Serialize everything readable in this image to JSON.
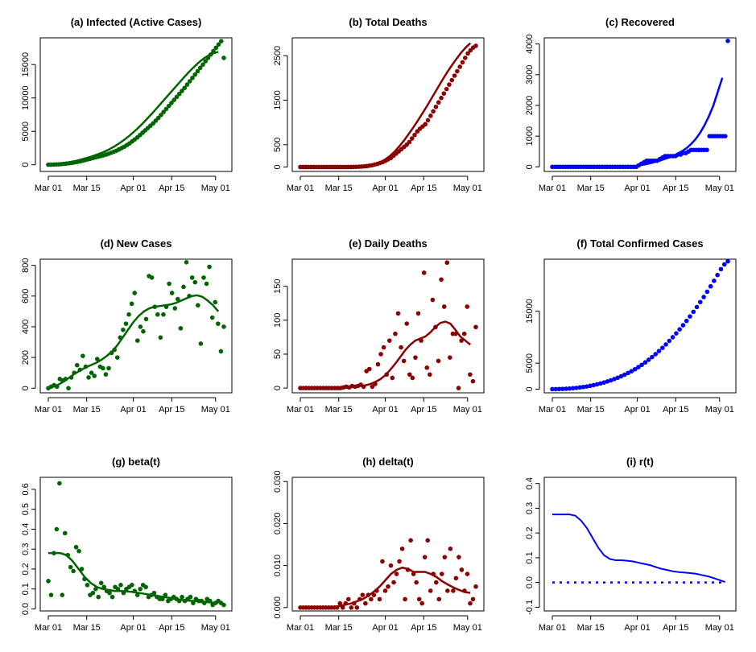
{
  "figure": {
    "date_ticks": [
      "Mar 01",
      "Mar 15",
      "Apr 01",
      "Apr 15",
      "May 01"
    ]
  },
  "colors": {
    "green": "#006400",
    "red": "#8b0000",
    "blue": "#0000ff"
  },
  "chart_data": [
    {
      "id": "a",
      "type": "scatter",
      "title": "(a) Infected (Active Cases)",
      "color": "#006400",
      "xlabel": "",
      "ylabel": "",
      "grid": false,
      "x_type": "date",
      "ylim": [
        -1000,
        19000
      ],
      "yticks": [
        0,
        5000,
        10000,
        15000
      ],
      "x_start": "Mar 01",
      "x_end": "May 04",
      "points_note": "daily observations Mar 01 - May 04",
      "values": [
        10,
        20,
        30,
        50,
        70,
        100,
        140,
        180,
        230,
        290,
        360,
        430,
        510,
        600,
        700,
        800,
        900,
        1000,
        1100,
        1200,
        1300,
        1400,
        1520,
        1650,
        1800,
        1950,
        2100,
        2300,
        2500,
        2700,
        2950,
        3200,
        3500,
        3800,
        4100,
        4450,
        4800,
        5150,
        5500,
        5850,
        6200,
        6600,
        7000,
        7450,
        7900,
        8350,
        8800,
        9250,
        9700,
        10150,
        10600,
        11050,
        11500,
        12000,
        12500,
        13000,
        13500,
        14000,
        14500,
        15000,
        15500,
        16000,
        16500,
        17000,
        17500,
        18000,
        18500,
        16000
      ],
      "fit": [
        0,
        50,
        100,
        200,
        300,
        450,
        600,
        800,
        1000,
        1200,
        1450,
        1700,
        2000,
        2350,
        2750,
        3200,
        3700,
        4250,
        4850,
        5500,
        6200,
        6950,
        7700,
        8500,
        9300,
        10100,
        10900,
        11700,
        12500,
        13300,
        14050,
        14750,
        15400,
        15950,
        16400,
        16700,
        16900
      ]
    },
    {
      "id": "b",
      "type": "scatter",
      "title": "(b) Total Deaths",
      "color": "#8b0000",
      "xlabel": "",
      "ylabel": "",
      "grid": false,
      "x_type": "date",
      "ylim": [
        -100,
        2900
      ],
      "yticks": [
        0,
        500,
        1500,
        2500
      ],
      "x_start": "Mar 01",
      "x_end": "May 04",
      "values": [
        0,
        0,
        0,
        0,
        0,
        0,
        0,
        0,
        0,
        0,
        0,
        0,
        0,
        0,
        0,
        0,
        0,
        0,
        0,
        0,
        2,
        4,
        6,
        10,
        15,
        20,
        30,
        40,
        55,
        70,
        90,
        110,
        140,
        170,
        200,
        250,
        300,
        350,
        400,
        450,
        500,
        560,
        640,
        720,
        800,
        860,
        910,
        960,
        1050,
        1150,
        1250,
        1350,
        1450,
        1550,
        1650,
        1750,
        1850,
        1950,
        2050,
        2150,
        2250,
        2350,
        2450,
        2550,
        2620,
        2680,
        2720
      ],
      "fit": [
        0,
        0,
        0,
        0,
        0,
        0,
        0,
        0,
        0,
        0,
        0,
        2,
        5,
        10,
        20,
        40,
        70,
        110,
        170,
        250,
        350,
        470,
        600,
        750,
        900,
        1060,
        1230,
        1400,
        1580,
        1760,
        1940,
        2110,
        2270,
        2420,
        2560,
        2680,
        2780
      ]
    },
    {
      "id": "c",
      "type": "scatter",
      "title": "(c) Recovered",
      "color": "#0000ff",
      "xlabel": "",
      "ylabel": "",
      "grid": false,
      "x_type": "date",
      "ylim": [
        -150,
        4200
      ],
      "yticks": [
        0,
        1000,
        2000,
        3000,
        4000
      ],
      "x_start": "Mar 01",
      "x_end": "May 04",
      "values": [
        0,
        0,
        0,
        0,
        0,
        0,
        0,
        0,
        0,
        0,
        0,
        0,
        0,
        0,
        0,
        0,
        0,
        0,
        0,
        0,
        0,
        0,
        0,
        0,
        0,
        0,
        0,
        0,
        0,
        0,
        0,
        0,
        0,
        50,
        100,
        150,
        200,
        200,
        200,
        200,
        200,
        250,
        300,
        350,
        350,
        350,
        350,
        350,
        400,
        400,
        450,
        450,
        500,
        550,
        550,
        550,
        550,
        550,
        550,
        550,
        1000,
        1000,
        1000,
        1000,
        1000,
        1000,
        1000,
        4100
      ],
      "fit": [
        0,
        0,
        0,
        0,
        0,
        0,
        0,
        0,
        0,
        0,
        0,
        0,
        0,
        0,
        0,
        0,
        0,
        10,
        20,
        40,
        60,
        90,
        120,
        160,
        200,
        250,
        300,
        360,
        430,
        510,
        610,
        740,
        900,
        1100,
        1350,
        1650,
        2000,
        2450,
        2900
      ]
    },
    {
      "id": "d",
      "type": "scatter",
      "title": "(d) New Cases",
      "color": "#006400",
      "xlabel": "",
      "ylabel": "",
      "grid": false,
      "x_type": "date",
      "ylim": [
        -30,
        840
      ],
      "yticks": [
        0,
        200,
        400,
        600,
        800
      ],
      "x_start": "Mar 01",
      "x_end": "May 04",
      "values": [
        0,
        10,
        20,
        10,
        60,
        50,
        60,
        0,
        70,
        100,
        150,
        120,
        210,
        140,
        70,
        100,
        80,
        190,
        140,
        130,
        90,
        130,
        230,
        250,
        200,
        330,
        380,
        420,
        480,
        550,
        620,
        310,
        400,
        370,
        450,
        730,
        720,
        530,
        480,
        330,
        480,
        530,
        680,
        620,
        520,
        580,
        390,
        660,
        820,
        600,
        720,
        690,
        540,
        290,
        720,
        680,
        790,
        460,
        560,
        420,
        240,
        400
      ],
      "fit": [
        0,
        10,
        25,
        45,
        70,
        95,
        115,
        135,
        150,
        165,
        185,
        210,
        240,
        280,
        330,
        380,
        430,
        470,
        500,
        520,
        530,
        535,
        540,
        545,
        555,
        570,
        585,
        600,
        605,
        595,
        570,
        540,
        500
      ]
    },
    {
      "id": "e",
      "type": "scatter",
      "title": "(e) Daily Deaths",
      "color": "#8b0000",
      "xlabel": "",
      "ylabel": "",
      "grid": false,
      "x_type": "date",
      "ylim": [
        -7,
        190
      ],
      "yticks": [
        0,
        50,
        100,
        150
      ],
      "x_start": "Mar 01",
      "x_end": "May 04",
      "values": [
        0,
        0,
        0,
        0,
        0,
        0,
        0,
        0,
        0,
        0,
        0,
        0,
        0,
        0,
        0,
        1,
        2,
        1,
        3,
        2,
        3,
        5,
        2,
        25,
        28,
        2,
        6,
        35,
        50,
        60,
        20,
        70,
        15,
        80,
        110,
        60,
        40,
        95,
        20,
        15,
        45,
        110,
        70,
        170,
        30,
        20,
        130,
        90,
        40,
        160,
        120,
        185,
        45,
        80,
        80,
        0,
        70,
        80,
        120,
        20,
        10,
        90
      ],
      "fit": [
        0,
        0,
        0,
        0,
        0,
        0,
        0,
        0,
        0,
        1,
        1,
        2,
        3,
        4,
        6,
        9,
        13,
        19,
        27,
        36,
        46,
        56,
        64,
        70,
        73,
        76,
        82,
        90,
        96,
        98,
        95,
        86,
        76,
        70,
        64
      ]
    },
    {
      "id": "f",
      "type": "scatter",
      "title": "(f) Total Confirmed Cases",
      "color": "#0000ff",
      "xlabel": "",
      "ylabel": "",
      "grid": false,
      "x_type": "date",
      "ylim": [
        -700,
        25000
      ],
      "yticks": [
        0,
        5000,
        15000
      ],
      "x_start": "Mar 01",
      "x_end": "May 04",
      "values": [
        0,
        10,
        30,
        50,
        80,
        120,
        180,
        250,
        330,
        420,
        520,
        640,
        780,
        940,
        1100,
        1280,
        1480,
        1700,
        1940,
        2200,
        2480,
        2780,
        3100,
        3450,
        3830,
        4240,
        4680,
        5150,
        5650,
        6180,
        6740,
        7330,
        7950,
        8600,
        9280,
        9990,
        10730,
        11500,
        12300,
        13130,
        13990,
        14880,
        15800,
        16750,
        17730,
        18740,
        19780,
        20850,
        21950,
        23080,
        24000,
        24600
      ],
      "fit": null
    },
    {
      "id": "g",
      "type": "scatter",
      "title": "(g) beta(t)",
      "color": "#006400",
      "xlabel": "",
      "ylabel": "",
      "grid": false,
      "x_type": "date",
      "ylim": [
        -0.01,
        0.66
      ],
      "yticks": [
        0.0,
        0.1,
        0.2,
        0.3,
        0.4,
        0.5,
        0.6
      ],
      "x_start": "Mar 01",
      "x_end": "May 04",
      "values": [
        0.14,
        0.07,
        0.28,
        0.4,
        0.63,
        0.07,
        0.38,
        0.27,
        0.21,
        0.19,
        0.31,
        0.29,
        0.2,
        0.15,
        0.12,
        0.07,
        0.08,
        0.1,
        0.06,
        0.13,
        0.11,
        0.09,
        0.08,
        0.06,
        0.11,
        0.1,
        0.12,
        0.08,
        0.1,
        0.11,
        0.12,
        0.09,
        0.07,
        0.1,
        0.12,
        0.11,
        0.06,
        0.07,
        0.08,
        0.06,
        0.05,
        0.05,
        0.07,
        0.04,
        0.05,
        0.06,
        0.05,
        0.04,
        0.06,
        0.04,
        0.05,
        0.06,
        0.03,
        0.05,
        0.04,
        0.04,
        0.03,
        0.05,
        0.04,
        0.02,
        0.03,
        0.04,
        0.03,
        0.02
      ],
      "fit": [
        0.28,
        0.28,
        0.28,
        0.27,
        0.24,
        0.2,
        0.16,
        0.13,
        0.11,
        0.1,
        0.095,
        0.09,
        0.09,
        0.088,
        0.085,
        0.08,
        0.075,
        0.07,
        0.065,
        0.06,
        0.055,
        0.05,
        0.045,
        0.042,
        0.04,
        0.038,
        0.035,
        0.032,
        0.03
      ]
    },
    {
      "id": "h",
      "type": "scatter",
      "title": "(h) delta(t)",
      "color": "#8b0000",
      "xlabel": "",
      "ylabel": "",
      "grid": false,
      "x_type": "date",
      "ylim": [
        -0.0008,
        0.031
      ],
      "yticks": [
        0.0,
        0.01,
        0.02,
        0.03
      ],
      "x_start": "Mar 01",
      "x_end": "May 04",
      "values": [
        0,
        0,
        0,
        0,
        0,
        0,
        0,
        0,
        0,
        0,
        0,
        0,
        0,
        0,
        0.001,
        0,
        0.001,
        0.002,
        0,
        0.001,
        0,
        0.002,
        0.003,
        0.001,
        0.003,
        0.002,
        0.003,
        0.004,
        0.002,
        0.011,
        0.004,
        0.005,
        0.01,
        0.006,
        0.008,
        0.011,
        0.014,
        0.002,
        0.009,
        0.016,
        0.008,
        0.006,
        0.002,
        0.001,
        0.012,
        0.016,
        0.004,
        0.008,
        0.006,
        0.002,
        0.008,
        0.012,
        0.004,
        0.014,
        0.004,
        0.007,
        0.012,
        0.009,
        0.004,
        0.008,
        0.001,
        0.002,
        0.005
      ],
      "fit": [
        0,
        0,
        0,
        0,
        0,
        0,
        0.0002,
        0.0004,
        0.0007,
        0.001,
        0.0015,
        0.002,
        0.0028,
        0.0038,
        0.005,
        0.0065,
        0.008,
        0.009,
        0.0095,
        0.0092,
        0.0085,
        0.0085,
        0.0085,
        0.008,
        0.0073,
        0.0063,
        0.0055,
        0.0048,
        0.0042,
        0.0037,
        0.0035
      ]
    },
    {
      "id": "i",
      "type": "line",
      "title": "(i) r(t)",
      "color": "#0000ff",
      "xlabel": "",
      "ylabel": "",
      "grid": false,
      "x_type": "date",
      "ylim": [
        -0.115,
        0.425
      ],
      "yticks": [
        -0.1,
        0.0,
        0.1,
        0.2,
        0.3,
        0.4
      ],
      "x_start": "Mar 01",
      "x_end": "May 04",
      "series": [
        {
          "style": "solid",
          "values": [
            0.275,
            0.275,
            0.275,
            0.275,
            0.27,
            0.25,
            0.22,
            0.18,
            0.14,
            0.11,
            0.095,
            0.09,
            0.09,
            0.088,
            0.085,
            0.08,
            0.075,
            0.07,
            0.062,
            0.055,
            0.05,
            0.045,
            0.042,
            0.04,
            0.038,
            0.035,
            0.03,
            0.025,
            0.018,
            0.01,
            0.002
          ]
        },
        {
          "style": "dotted",
          "values": [
            0,
            0,
            0,
            0,
            0,
            0,
            0,
            0,
            0,
            0,
            0,
            0,
            0,
            0,
            0,
            0,
            0,
            0,
            0,
            0,
            0,
            0,
            0,
            0,
            0,
            0,
            0,
            0,
            0,
            0
          ]
        }
      ]
    }
  ]
}
